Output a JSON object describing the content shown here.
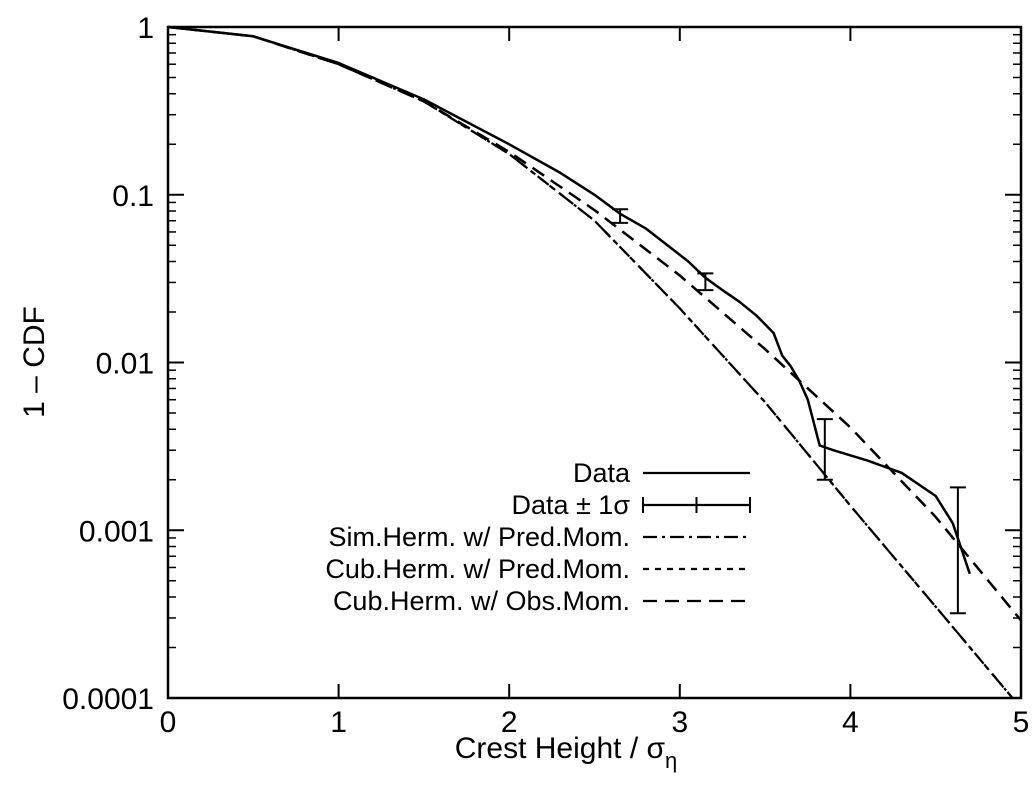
{
  "chart_data": {
    "type": "line",
    "xlabel": "Crest Height / σ",
    "xlabel_sub": "η",
    "ylabel": "1 – CDF",
    "xlim": [
      0,
      5
    ],
    "ylim": [
      0.0001,
      1
    ],
    "yscale": "log",
    "grid": false,
    "legend_position": "bottom-right",
    "x_ticks": [
      0,
      1,
      2,
      3,
      4,
      5
    ],
    "x_tick_labels": [
      "0",
      "1",
      "2",
      "3",
      "4",
      "5"
    ],
    "y_ticks": [
      1,
      0.1,
      0.01,
      0.001,
      0.0001
    ],
    "y_tick_labels": [
      "1",
      "0.1",
      "0.01",
      "0.001",
      "0.0001"
    ],
    "series": [
      {
        "name": "Data",
        "style": "solid",
        "x": [
          0,
          0.5,
          1.0,
          1.5,
          2.0,
          2.3,
          2.5,
          2.65,
          2.8,
          2.95,
          3.05,
          3.15,
          3.25,
          3.35,
          3.45,
          3.55,
          3.6,
          3.65,
          3.7,
          3.75,
          3.82,
          3.9,
          4.1,
          4.3,
          4.5,
          4.6,
          4.7
        ],
        "y": [
          1,
          0.88,
          0.61,
          0.37,
          0.2,
          0.135,
          0.1,
          0.077,
          0.063,
          0.048,
          0.04,
          0.032,
          0.027,
          0.023,
          0.019,
          0.015,
          0.011,
          0.0095,
          0.0078,
          0.006,
          0.0032,
          0.003,
          0.0026,
          0.0022,
          0.0016,
          0.0011,
          0.00055
        ]
      },
      {
        "name": "Data ± 1σ",
        "style": "errorbar",
        "x": [
          2.65,
          3.15,
          3.85,
          4.63
        ],
        "y": [
          0.075,
          0.03,
          0.003,
          0.0011
        ],
        "ylow": [
          0.068,
          0.027,
          0.002,
          0.00032
        ],
        "yhigh": [
          0.082,
          0.034,
          0.0046,
          0.0018
        ]
      },
      {
        "name": "Sim.Herm. w/ Pred.Mom.",
        "style": "dashdot",
        "x": [
          0,
          0.5,
          1.0,
          1.5,
          2.0,
          2.5,
          3.0,
          3.5,
          4.0,
          4.5,
          4.95
        ],
        "y": [
          1,
          0.88,
          0.6,
          0.36,
          0.175,
          0.07,
          0.021,
          0.0058,
          0.0014,
          0.00035,
          0.0001
        ]
      },
      {
        "name": "Cub.Herm. w/ Pred.Mom.",
        "style": "dotted",
        "x": [
          0,
          0.5,
          1.0,
          1.5,
          2.0,
          2.5,
          3.0,
          3.5,
          4.0,
          4.5,
          4.95
        ],
        "y": [
          1,
          0.88,
          0.6,
          0.36,
          0.175,
          0.07,
          0.021,
          0.0058,
          0.0014,
          0.00035,
          0.0001
        ]
      },
      {
        "name": "Cub.Herm. w/ Obs.Mom.",
        "style": "dashed",
        "x": [
          0,
          0.5,
          1.0,
          1.5,
          2.0,
          2.5,
          3.0,
          3.5,
          4.0,
          4.5,
          5.0
        ],
        "y": [
          1,
          0.88,
          0.6,
          0.36,
          0.18,
          0.081,
          0.033,
          0.012,
          0.0041,
          0.0012,
          0.00029
        ]
      }
    ]
  }
}
